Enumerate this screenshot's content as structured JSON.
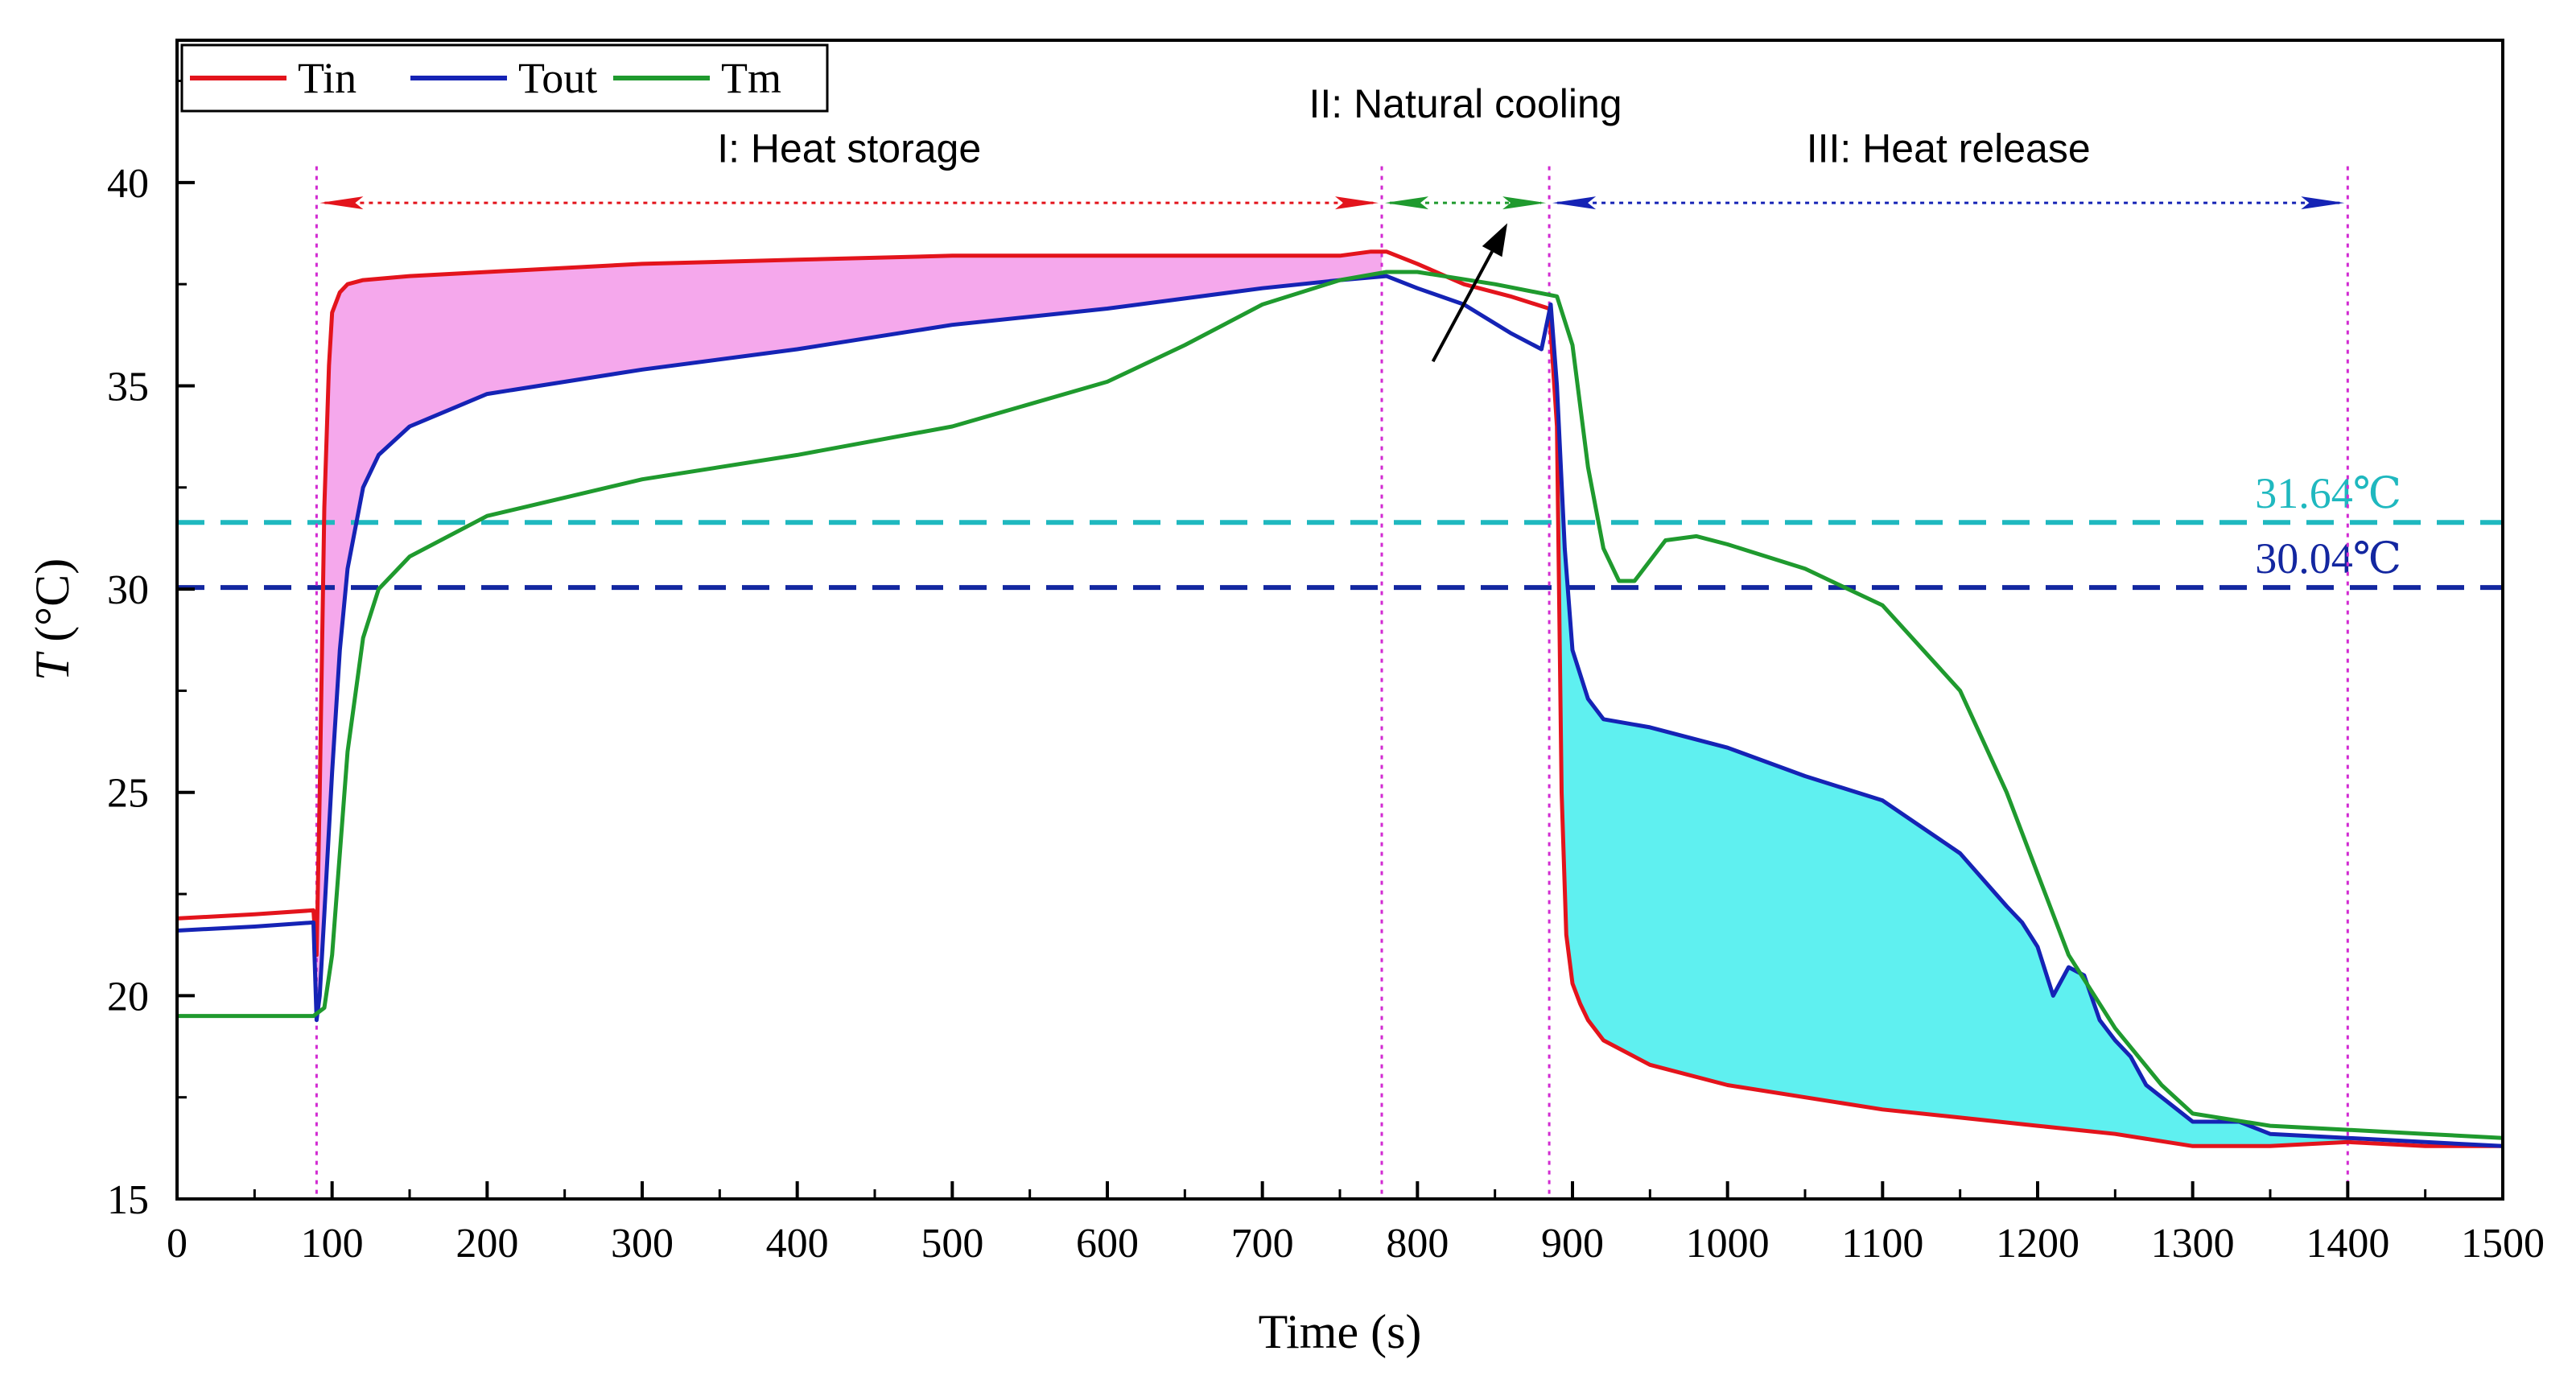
{
  "chart_data": {
    "type": "line",
    "xlabel": "Time (s)",
    "ylabel_symbol": "T",
    "ylabel_unit": " (°C)",
    "xlim": [
      0,
      1500
    ],
    "ylim": [
      15,
      43.5
    ],
    "xticks": [
      0,
      100,
      200,
      300,
      400,
      500,
      600,
      700,
      800,
      900,
      1000,
      1100,
      1200,
      1300,
      1400,
      1500
    ],
    "xtick_labels": [
      "0",
      "100",
      "200",
      "300",
      "400",
      "500",
      "600",
      "700",
      "800",
      "900",
      "1000",
      "1100",
      "1200",
      "1300",
      "1400",
      "1500"
    ],
    "yticks": [
      15,
      20,
      25,
      30,
      35,
      40
    ],
    "ytick_labels": [
      "15",
      "20",
      "25",
      "30",
      "35",
      "40"
    ],
    "grid": false,
    "legend_position": "top-left",
    "series": [
      {
        "name": "Tin",
        "color": "#e3141c",
        "x": [
          0,
          50,
          88,
          90,
          92,
          95,
          98,
          100,
          105,
          110,
          120,
          150,
          200,
          300,
          400,
          500,
          600,
          700,
          750,
          770,
          780,
          800,
          830,
          860,
          885,
          890,
          893,
          896,
          900,
          905,
          910,
          920,
          950,
          1000,
          1050,
          1100,
          1150,
          1200,
          1250,
          1300,
          1350,
          1400,
          1450,
          1500
        ],
        "y": [
          21.9,
          22.0,
          22.1,
          21.0,
          25.0,
          32.0,
          35.5,
          36.8,
          37.3,
          37.5,
          37.6,
          37.7,
          37.8,
          38.0,
          38.1,
          38.2,
          38.2,
          38.2,
          38.2,
          38.3,
          38.3,
          38.0,
          37.5,
          37.2,
          36.9,
          34.0,
          25.0,
          21.5,
          20.3,
          19.8,
          19.4,
          18.9,
          18.3,
          17.8,
          17.5,
          17.2,
          17.0,
          16.8,
          16.6,
          16.3,
          16.3,
          16.4,
          16.3,
          16.3
        ]
      },
      {
        "name": "Tout",
        "color": "#1523b5",
        "x": [
          0,
          50,
          88,
          90,
          92,
          95,
          100,
          105,
          110,
          120,
          130,
          150,
          200,
          300,
          400,
          500,
          600,
          700,
          750,
          780,
          800,
          830,
          860,
          880,
          886,
          890,
          895,
          900,
          910,
          920,
          950,
          1000,
          1050,
          1100,
          1150,
          1180,
          1190,
          1200,
          1210,
          1220,
          1230,
          1240,
          1250,
          1260,
          1270,
          1300,
          1330,
          1350,
          1400,
          1450,
          1500
        ],
        "y": [
          21.6,
          21.7,
          21.8,
          19.4,
          20.0,
          22.0,
          25.5,
          28.5,
          30.5,
          32.5,
          33.3,
          34.0,
          34.8,
          35.4,
          35.9,
          36.5,
          36.9,
          37.4,
          37.6,
          37.7,
          37.4,
          37.0,
          36.3,
          35.9,
          37.0,
          35.0,
          31.0,
          28.5,
          27.3,
          26.8,
          26.6,
          26.1,
          25.4,
          24.8,
          23.5,
          22.2,
          21.8,
          21.2,
          20.0,
          20.7,
          20.5,
          19.4,
          18.9,
          18.5,
          17.8,
          16.9,
          16.9,
          16.6,
          16.5,
          16.4,
          16.3
        ]
      },
      {
        "name": "Tm",
        "color": "#1f9a2e",
        "x": [
          0,
          50,
          88,
          95,
          100,
          105,
          110,
          120,
          130,
          150,
          200,
          300,
          400,
          500,
          600,
          650,
          700,
          750,
          780,
          800,
          850,
          890,
          900,
          910,
          920,
          930,
          940,
          960,
          980,
          1000,
          1050,
          1100,
          1150,
          1180,
          1200,
          1220,
          1250,
          1280,
          1300,
          1350,
          1400,
          1450,
          1500
        ],
        "y": [
          19.5,
          19.5,
          19.5,
          19.7,
          21.0,
          23.5,
          26.0,
          28.8,
          30.0,
          30.8,
          31.8,
          32.7,
          33.3,
          34.0,
          35.1,
          36.0,
          37.0,
          37.6,
          37.8,
          37.8,
          37.5,
          37.2,
          36.0,
          33.0,
          31.0,
          30.2,
          30.2,
          31.2,
          31.3,
          31.1,
          30.5,
          29.6,
          27.5,
          25.0,
          23.0,
          21.0,
          19.2,
          17.8,
          17.1,
          16.8,
          16.7,
          16.6,
          16.5
        ]
      }
    ],
    "reference_lines": [
      {
        "value": 31.64,
        "label": "31.64℃",
        "color": "#1fb8bf"
      },
      {
        "value": 30.04,
        "label": "30.04℃",
        "color": "#1327a0"
      }
    ],
    "phase_boundaries": [
      90,
      777,
      885,
      1400
    ],
    "phases": [
      {
        "label": "I: Heat storage",
        "x_start": 90,
        "x_end": 777,
        "color": "#e3141c"
      },
      {
        "label": "II: Natural cooling",
        "x_start": 777,
        "x_end": 885,
        "color": "#1f9a2e"
      },
      {
        "label": "III: Heat release",
        "x_start": 885,
        "x_end": 1400,
        "color": "#1523b5"
      }
    ],
    "shaded_regions": [
      {
        "between": [
          "Tin",
          "Tout"
        ],
        "x_range": [
          90,
          777
        ],
        "color": "#f5a8ec"
      },
      {
        "between": [
          "Tout",
          "Tin"
        ],
        "x_range": [
          890,
          1400
        ],
        "color": "#5ff0f0"
      }
    ],
    "arrow_annotation": {
      "from": [
        810,
        35.6
      ],
      "to": [
        858,
        39.0
      ]
    }
  }
}
